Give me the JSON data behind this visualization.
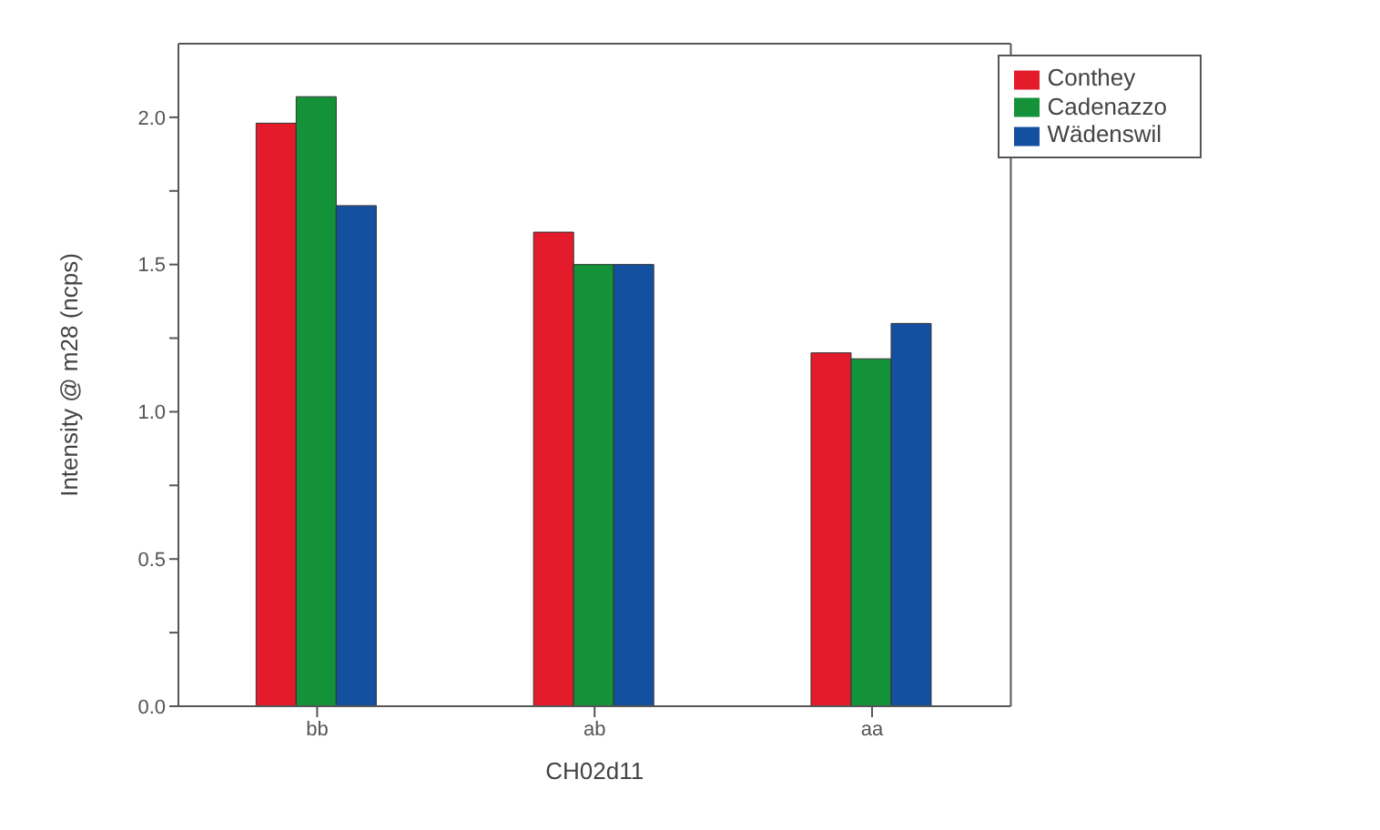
{
  "chart_data": {
    "type": "bar",
    "xlabel": "CH02d11",
    "ylabel": "Intensity @ m28 (ncps)",
    "categories": [
      "bb",
      "ab",
      "aa"
    ],
    "series": [
      {
        "name": "Conthey",
        "color": "#e31b2b",
        "values": [
          1.98,
          1.61,
          1.2
        ]
      },
      {
        "name": "Cadenazzo",
        "color": "#13923a",
        "values": [
          2.07,
          1.5,
          1.18
        ]
      },
      {
        "name": "Wädenswil",
        "color": "#1450a0",
        "values": [
          1.7,
          1.5,
          1.3
        ]
      }
    ],
    "ylim": [
      0,
      2.25
    ],
    "yticks": [
      {
        "value": 0,
        "label": "0.0"
      },
      {
        "value": 0.25,
        "label": null
      },
      {
        "value": 0.5,
        "label": "0.5"
      },
      {
        "value": 0.75,
        "label": null
      },
      {
        "value": 1,
        "label": "1.0"
      },
      {
        "value": 1.25,
        "label": null
      },
      {
        "value": 1.5,
        "label": "1.5"
      },
      {
        "value": 1.75,
        "label": null
      },
      {
        "value": 2,
        "label": "2.0"
      }
    ],
    "grid": false,
    "legend": "top right"
  }
}
